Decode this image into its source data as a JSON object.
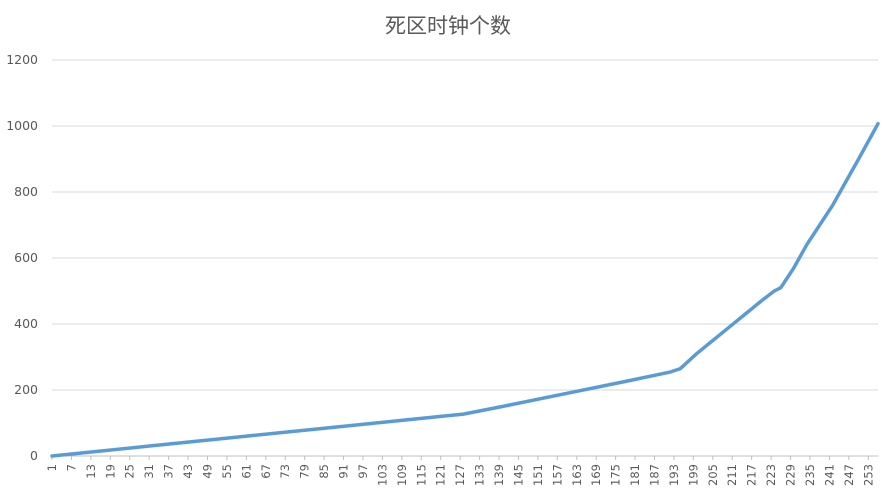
{
  "chart_data": {
    "type": "line",
    "title": "死区时钟个数",
    "xlabel": "",
    "ylabel": "",
    "x_range": [
      1,
      256
    ],
    "ylim": [
      0,
      1200
    ],
    "y_ticks": [
      0,
      200,
      400,
      600,
      800,
      1000,
      1200
    ],
    "x_tick_labels": [
      "1",
      "7",
      "13",
      "19",
      "25",
      "31",
      "37",
      "43",
      "49",
      "55",
      "61",
      "67",
      "73",
      "79",
      "85",
      "91",
      "97",
      "103",
      "109",
      "115",
      "121",
      "127",
      "133",
      "139",
      "145",
      "151",
      "157",
      "163",
      "169",
      "175",
      "181",
      "187",
      "193",
      "199",
      "205",
      "211",
      "217",
      "223",
      "229",
      "235",
      "241",
      "247",
      "253"
    ],
    "grid": true,
    "legend": "none",
    "line_color": "#5B9BD5",
    "series": [
      {
        "x": [
          1,
          30,
          60,
          90,
          110,
          128,
          140,
          160,
          180,
          192,
          195,
          200,
          205,
          210,
          215,
          220,
          224,
          226,
          230,
          234,
          238,
          242,
          246,
          250,
          256
        ],
        "values": [
          0,
          29,
          59,
          89,
          109,
          127,
          150,
          190,
          230,
          255,
          265,
          310,
          350,
          390,
          430,
          470,
          500,
          510,
          570,
          640,
          700,
          760,
          830,
          900,
          1007
        ]
      }
    ]
  }
}
